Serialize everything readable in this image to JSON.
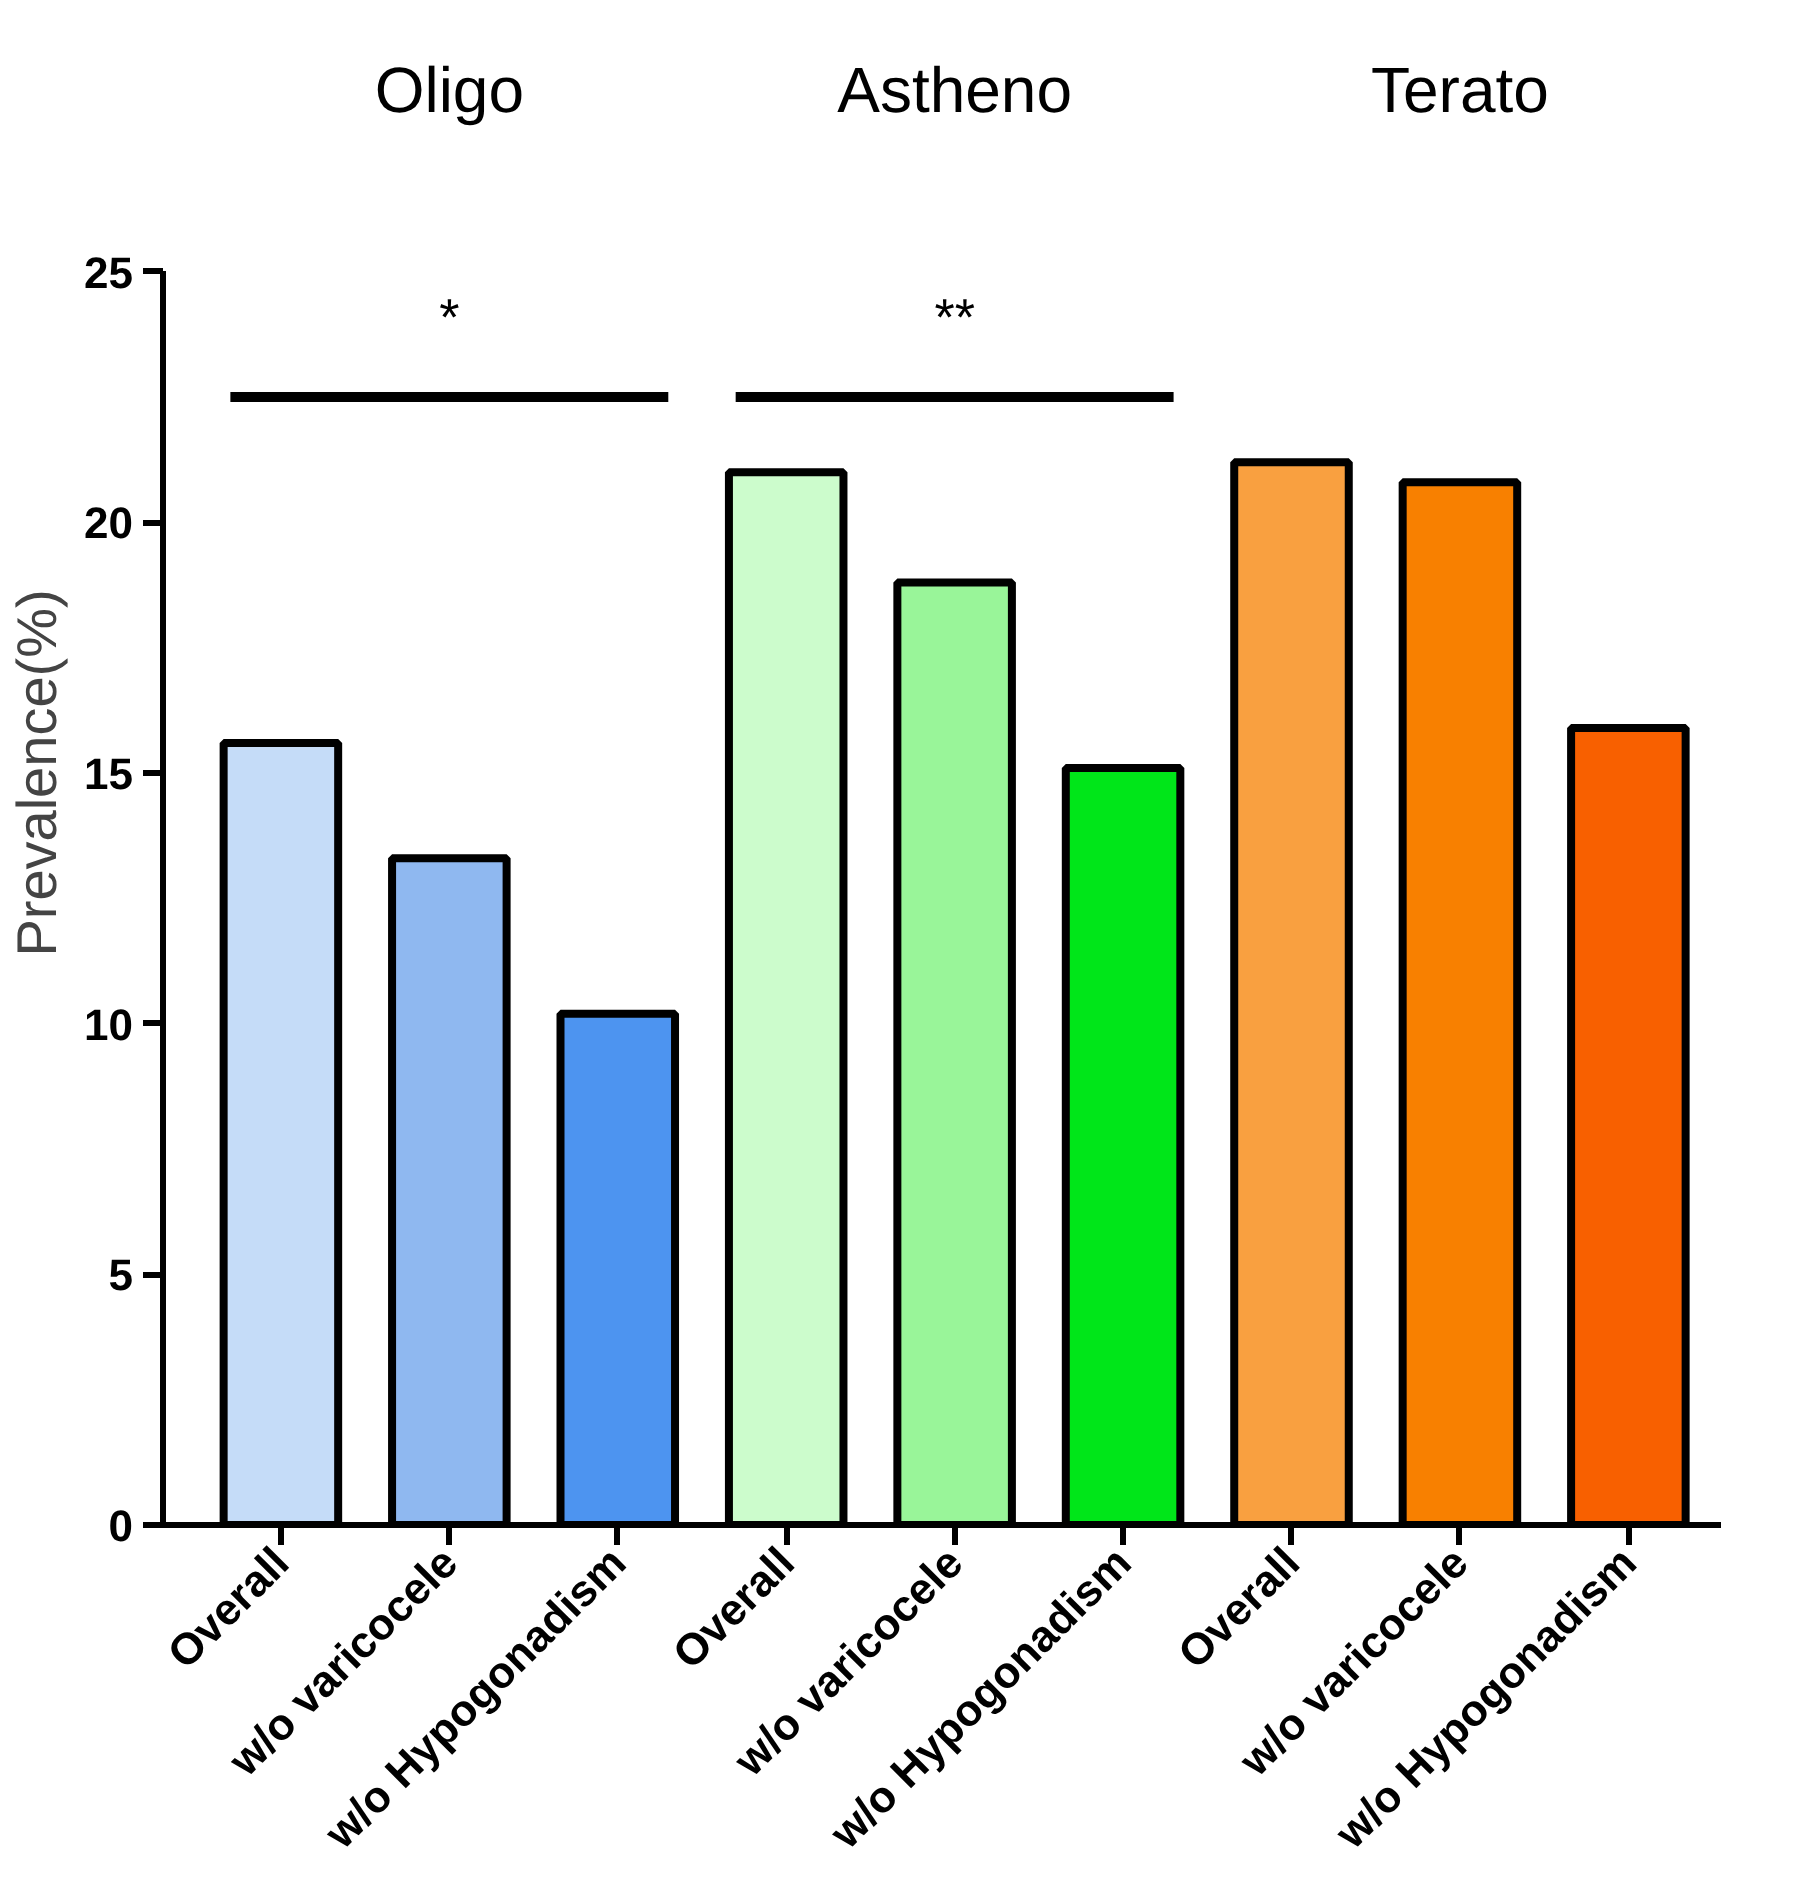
{
  "chart_data": {
    "type": "bar",
    "ylabel": "Prevalence(%)",
    "categories": [
      "Overall",
      "w/o varicocele",
      "w/o Hypogonadism",
      "Overall",
      "w/o varicocele",
      "w/o Hypogonadism",
      "Overall",
      "w/o varicocele",
      "w/o Hypogonadism"
    ],
    "values": [
      15.6,
      13.3,
      10.2,
      21.0,
      18.8,
      15.1,
      21.2,
      20.8,
      15.9
    ],
    "colors": [
      "#c5dcf8",
      "#8fb8f0",
      "#4d94f0",
      "#ccfccc",
      "#99f599",
      "#00e619",
      "#f9a040",
      "#f88000",
      "#f86000"
    ],
    "ylim": [
      0,
      25
    ],
    "yticks": [
      0,
      5,
      10,
      15,
      20,
      25
    ],
    "annotations": [
      "Oligo",
      "Astheno",
      "Terato",
      "*",
      "**"
    ],
    "grid": false
  }
}
